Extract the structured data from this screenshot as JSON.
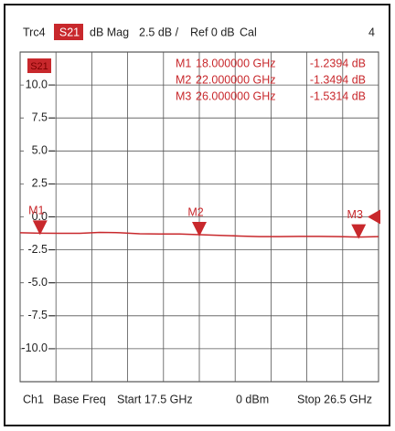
{
  "chart_data": {
    "type": "line",
    "header": [
      "Trc4",
      "S21",
      "dB Mag",
      "2.5 dB /",
      "Ref 0 dB",
      "Cal",
      "4"
    ],
    "trace_label": "S21",
    "footer": [
      "Ch1",
      "Base Freq",
      "Start 17.5 GHz",
      "0 dBm",
      "Stop 26.5 GHz"
    ],
    "x": [
      17.5,
      18,
      18.5,
      19,
      19.5,
      20,
      20.5,
      21,
      21.5,
      22,
      22.5,
      23,
      23.5,
      24,
      24.5,
      25,
      25.5,
      26,
      26.5
    ],
    "series": [
      {
        "name": "S21",
        "color": "#c8282c",
        "values": [
          -1.2,
          -1.24,
          -1.25,
          -1.25,
          -1.18,
          -1.2,
          -1.28,
          -1.3,
          -1.3,
          -1.35,
          -1.4,
          -1.45,
          -1.5,
          -1.5,
          -1.48,
          -1.48,
          -1.5,
          -1.53,
          -1.5
        ]
      }
    ],
    "markers": [
      {
        "name": "M1",
        "x": 18,
        "x_label": "18.000000 GHz",
        "value": -1.2394,
        "value_label": "-1.2394 dB"
      },
      {
        "name": "M2",
        "x": 22,
        "x_label": "22.000000 GHz",
        "value": -1.3494,
        "value_label": "-1.3494 dB"
      },
      {
        "name": "M3",
        "x": 26,
        "x_label": "26.000000 GHz",
        "value": -1.5314,
        "value_label": "-1.5314 dB"
      }
    ],
    "xlim": [
      17.5,
      26.5
    ],
    "xticks": [
      17.5,
      18.4,
      19.3,
      20.2,
      21.1,
      22,
      22.9,
      23.8,
      24.7,
      25.6,
      26.5
    ],
    "ylim": [
      -12.5,
      12.5
    ],
    "yticks": [
      {
        "value": 10,
        "label": "10.0"
      },
      7.5,
      {
        "value": 5,
        "label": "5.0"
      },
      2.5,
      {
        "value": 0,
        "label": "0.0"
      },
      -2.5,
      {
        "value": -5,
        "label": "-5.0"
      },
      -7.5,
      {
        "value": -10,
        "label": "-10.0"
      }
    ],
    "grid": true
  }
}
